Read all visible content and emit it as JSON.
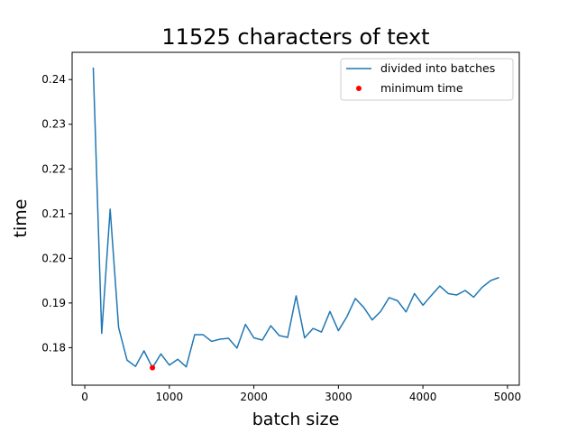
{
  "chart_data": {
    "type": "line",
    "title": "11525 characters of text",
    "xlabel": "batch size",
    "ylabel": "time",
    "xlim": [
      -150,
      5140
    ],
    "ylim": [
      0.1716,
      0.2461
    ],
    "xticks": [
      0,
      1000,
      2000,
      3000,
      4000,
      5000
    ],
    "xtick_labels": [
      "0",
      "1000",
      "2000",
      "3000",
      "4000",
      "5000"
    ],
    "yticks": [
      0.18,
      0.19,
      0.2,
      0.21,
      0.22,
      0.23,
      0.24
    ],
    "ytick_labels": [
      "0.18",
      "0.19",
      "0.20",
      "0.21",
      "0.22",
      "0.23",
      "0.24"
    ],
    "grid": false,
    "legend_position": "top-right",
    "series": [
      {
        "name": "divided into batches",
        "color": "#1f77b4",
        "x": [
          100,
          200,
          300,
          400,
          500,
          600,
          700,
          800,
          900,
          1000,
          1100,
          1200,
          1300,
          1400,
          1500,
          1600,
          1700,
          1800,
          1900,
          2000,
          2100,
          2200,
          2300,
          2400,
          2500,
          2600,
          2700,
          2800,
          2900,
          3000,
          3100,
          3200,
          3300,
          3400,
          3500,
          3600,
          3700,
          3800,
          3900,
          4000,
          4100,
          4200,
          4300,
          4400,
          4500,
          4600,
          4700,
          4800,
          4900
        ],
        "y": [
          0.2427,
          0.1832,
          0.211,
          0.1845,
          0.1772,
          0.1758,
          0.1793,
          0.1755,
          0.1786,
          0.1761,
          0.1774,
          0.1757,
          0.1829,
          0.1829,
          0.1814,
          0.1819,
          0.1821,
          0.1799,
          0.1852,
          0.1822,
          0.1817,
          0.1849,
          0.1827,
          0.1823,
          0.1916,
          0.1822,
          0.1843,
          0.1835,
          0.1881,
          0.1838,
          0.1869,
          0.191,
          0.189,
          0.1862,
          0.1881,
          0.1912,
          0.1905,
          0.188,
          0.1921,
          0.1895,
          0.1917,
          0.1938,
          0.1921,
          0.1918,
          0.1928,
          0.1913,
          0.1935,
          0.195,
          0.1957
        ]
      },
      {
        "name": "minimum time",
        "type": "scatter",
        "color": "#ff0000",
        "x": [
          800
        ],
        "y": [
          0.1755
        ]
      }
    ]
  }
}
